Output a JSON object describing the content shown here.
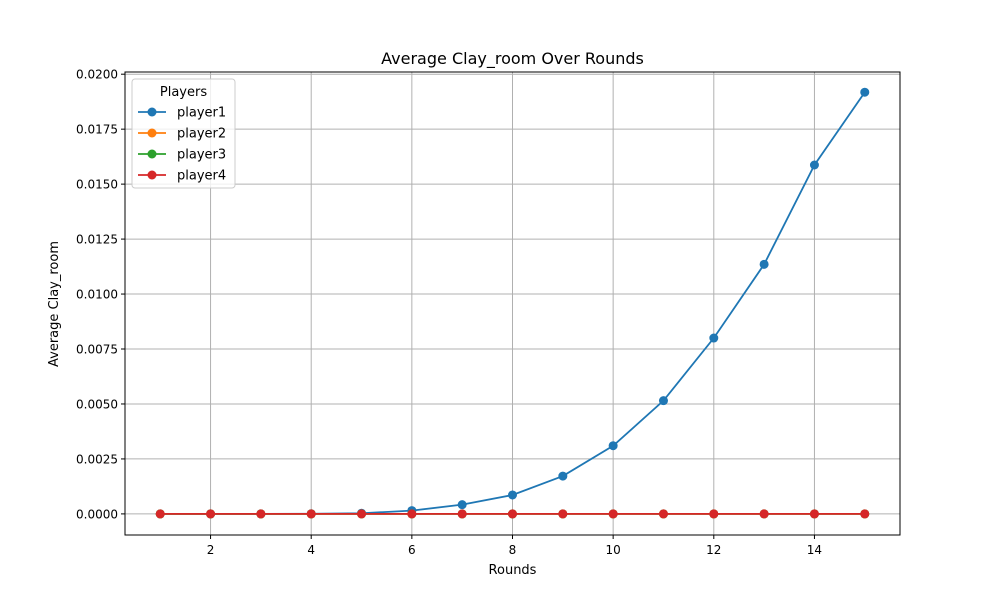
{
  "chart_data": {
    "type": "line",
    "title": "Average Clay_room Over Rounds",
    "xlabel": "Rounds",
    "ylabel": "Average Clay_room",
    "xlim": [
      0.3,
      15.7
    ],
    "ylim": [
      -0.00096,
      0.0201
    ],
    "grid": true,
    "legend": {
      "title": "Players",
      "placement": "top-left"
    },
    "x_ticks": [
      2,
      4,
      6,
      8,
      10,
      12,
      14
    ],
    "x_tick_labels": [
      "2",
      "4",
      "6",
      "8",
      "10",
      "12",
      "14"
    ],
    "y_ticks": [
      0,
      0.0025,
      0.005,
      0.0075,
      0.01,
      0.0125,
      0.015,
      0.0175,
      0.02
    ],
    "y_tick_labels": [
      "0.0000",
      "0.0025",
      "0.0050",
      "0.0075",
      "0.0100",
      "0.0125",
      "0.0150",
      "0.0175",
      "0.0200"
    ],
    "x": [
      1,
      2,
      3,
      4,
      5,
      6,
      7,
      8,
      9,
      10,
      11,
      12,
      13,
      14,
      15
    ],
    "series": [
      {
        "name": "player1",
        "color": "#1f77b4",
        "values": [
          0,
          0,
          0,
          5e-06,
          3e-05,
          0.00015,
          0.00042,
          0.00086,
          0.00172,
          0.0031,
          0.00515,
          0.008,
          0.01135,
          0.01587,
          0.01918
        ]
      },
      {
        "name": "player2",
        "color": "#ff7f0e",
        "values": [
          0,
          0,
          0,
          0,
          0,
          0,
          0,
          0,
          0,
          0,
          0,
          0,
          0,
          0,
          0
        ]
      },
      {
        "name": "player3",
        "color": "#2ca02c",
        "values": [
          0,
          0,
          0,
          0,
          0,
          0,
          0,
          0,
          0,
          0,
          0,
          0,
          0,
          0,
          0
        ]
      },
      {
        "name": "player4",
        "color": "#d62728",
        "values": [
          0,
          0,
          0,
          0,
          0,
          0,
          0,
          0,
          0,
          0,
          0,
          0,
          0,
          0,
          0
        ]
      }
    ]
  }
}
